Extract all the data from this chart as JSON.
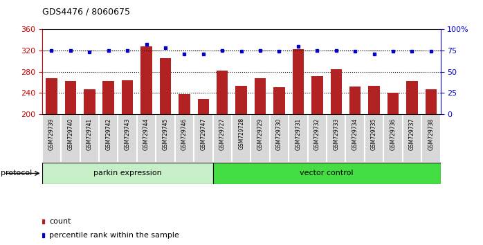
{
  "title": "GDS4476 / 8060675",
  "samples": [
    "GSM729739",
    "GSM729740",
    "GSM729741",
    "GSM729742",
    "GSM729743",
    "GSM729744",
    "GSM729745",
    "GSM729746",
    "GSM729747",
    "GSM729727",
    "GSM729728",
    "GSM729729",
    "GSM729730",
    "GSM729731",
    "GSM729732",
    "GSM729733",
    "GSM729734",
    "GSM729735",
    "GSM729736",
    "GSM729737",
    "GSM729738"
  ],
  "count_values": [
    268,
    263,
    247,
    262,
    264,
    328,
    305,
    238,
    228,
    282,
    253,
    268,
    251,
    322,
    271,
    284,
    252,
    253,
    240,
    262,
    246
  ],
  "percentile_values": [
    75,
    75,
    73,
    75,
    75,
    82,
    78,
    71,
    71,
    75,
    74,
    75,
    74,
    80,
    75,
    75,
    74,
    71,
    74,
    74,
    74
  ],
  "bar_color": "#b22222",
  "dot_color": "#0000cc",
  "ylim_left": [
    200,
    360
  ],
  "ylim_right": [
    0,
    100
  ],
  "yticks_left": [
    200,
    240,
    280,
    320,
    360
  ],
  "yticks_right": [
    0,
    25,
    50,
    75,
    100
  ],
  "ytick_labels_right": [
    "0",
    "25",
    "50",
    "75",
    "100%"
  ],
  "grid_values": [
    240,
    280,
    320
  ],
  "parkin_count": 9,
  "vector_count": 12,
  "group1_label": "parkin expression",
  "group2_label": "vector control",
  "protocol_label": "protocol",
  "legend_count": "count",
  "legend_pct": "percentile rank within the sample",
  "parkin_fill": "#c8f0c8",
  "vector_fill": "#44dd44",
  "cell_bg": "#d8d8d8",
  "cell_border": "#ffffff",
  "xlabel_color": "#cc0000",
  "ylabel_right_color": "#0000cc"
}
